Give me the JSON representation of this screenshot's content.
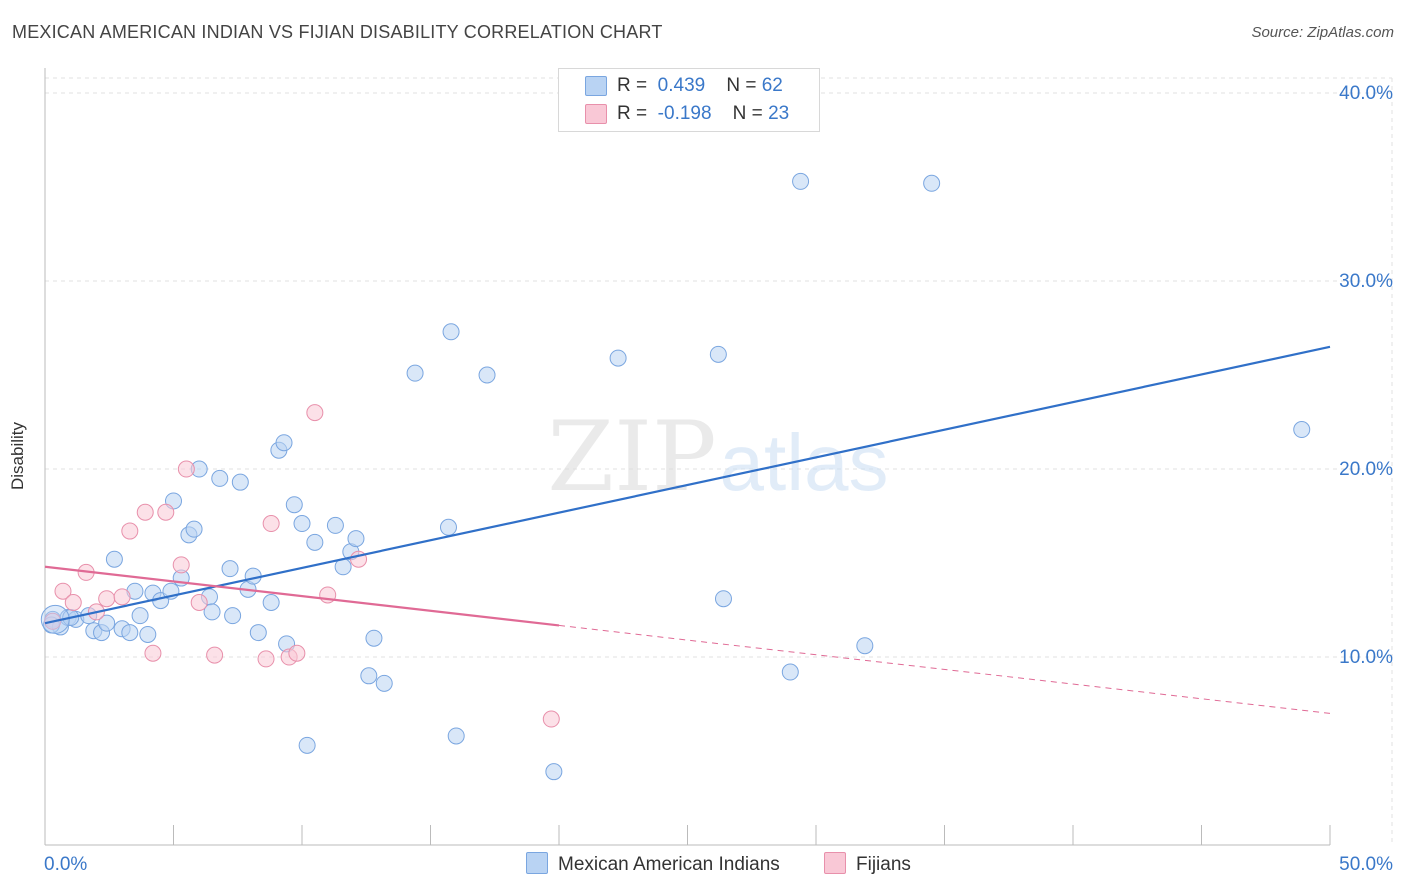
{
  "title": "MEXICAN AMERICAN INDIAN VS FIJIAN DISABILITY CORRELATION CHART",
  "source": "Source: ZipAtlas.com",
  "watermark": {
    "zip": "ZIP",
    "atlas": "atlas"
  },
  "legend": {
    "rows": [
      {
        "r_label": "R =",
        "r_value": "0.439",
        "n_label": "N =",
        "n_value": "62",
        "color": "#b9d3f3",
        "border": "#7aa6e0"
      },
      {
        "r_label": "R =",
        "r_value": "-0.198",
        "n_label": "N =",
        "n_value": "23",
        "color": "#f9c8d6",
        "border": "#e890ab"
      }
    ]
  },
  "bottom_legend": [
    {
      "label": "Mexican American Indians",
      "color": "#b9d3f3",
      "border": "#7aa6e0"
    },
    {
      "label": "Fijians",
      "color": "#f9c8d6",
      "border": "#e890ab"
    }
  ],
  "chart_data": {
    "type": "scatter",
    "title": "MEXICAN AMERICAN INDIAN VS FIJIAN DISABILITY CORRELATION CHART",
    "xlabel": "",
    "ylabel": "Disability",
    "xlim": [
      0,
      50
    ],
    "ylim": [
      0,
      40.8
    ],
    "x_tick_labels": [
      {
        "value": 0,
        "label": "0.0%"
      },
      {
        "value": 50,
        "label": "50.0%"
      }
    ],
    "y_tick_labels": [
      {
        "value": 10,
        "label": "10.0%"
      },
      {
        "value": 20,
        "label": "20.0%"
      },
      {
        "value": 30,
        "label": "30.0%"
      },
      {
        "value": 40,
        "label": "40.0%"
      }
    ],
    "series": [
      {
        "name": "Mexican American Indians",
        "color": "#b9d3f3",
        "stroke": "#7aa6e0",
        "trend": {
          "x0": 0,
          "y0": 11.8,
          "x1": 50,
          "y1": 26.5,
          "color": "#3070c8",
          "dashed_from": null
        },
        "points": [
          [
            0.3,
            12.0
          ],
          [
            0.6,
            11.6
          ],
          [
            0.9,
            12.1
          ],
          [
            1.2,
            12.0
          ],
          [
            1.7,
            12.2
          ],
          [
            1.9,
            11.4
          ],
          [
            2.2,
            11.3
          ],
          [
            2.4,
            11.8
          ],
          [
            2.7,
            15.2
          ],
          [
            3.0,
            11.5
          ],
          [
            3.3,
            11.3
          ],
          [
            3.5,
            13.5
          ],
          [
            3.7,
            12.2
          ],
          [
            4.0,
            11.2
          ],
          [
            4.2,
            13.4
          ],
          [
            4.5,
            13.0
          ],
          [
            4.9,
            13.5
          ],
          [
            5.0,
            18.3
          ],
          [
            5.3,
            14.2
          ],
          [
            5.6,
            16.5
          ],
          [
            5.8,
            16.8
          ],
          [
            6.0,
            20.0
          ],
          [
            6.4,
            13.2
          ],
          [
            6.5,
            12.4
          ],
          [
            6.8,
            19.5
          ],
          [
            7.2,
            14.7
          ],
          [
            7.3,
            12.2
          ],
          [
            7.6,
            19.3
          ],
          [
            7.9,
            13.6
          ],
          [
            8.1,
            14.3
          ],
          [
            8.3,
            11.3
          ],
          [
            8.8,
            12.9
          ],
          [
            9.1,
            21.0
          ],
          [
            9.3,
            21.4
          ],
          [
            9.4,
            10.7
          ],
          [
            9.7,
            18.1
          ],
          [
            10.0,
            17.1
          ],
          [
            10.2,
            5.3
          ],
          [
            10.5,
            16.1
          ],
          [
            11.3,
            17.0
          ],
          [
            11.6,
            14.8
          ],
          [
            11.9,
            15.6
          ],
          [
            12.1,
            16.3
          ],
          [
            12.6,
            9.0
          ],
          [
            12.8,
            11.0
          ],
          [
            13.2,
            8.6
          ],
          [
            14.4,
            25.1
          ],
          [
            15.7,
            16.9
          ],
          [
            15.8,
            27.3
          ],
          [
            16.0,
            5.8
          ],
          [
            17.2,
            25.0
          ],
          [
            19.8,
            3.9
          ],
          [
            22.3,
            25.9
          ],
          [
            26.2,
            26.1
          ],
          [
            26.4,
            13.1
          ],
          [
            29.0,
            9.2
          ],
          [
            29.4,
            35.3
          ],
          [
            31.9,
            10.6
          ],
          [
            34.5,
            35.2
          ],
          [
            48.9,
            22.1
          ],
          [
            0.25,
            11.7
          ],
          [
            1.0,
            12.1
          ]
        ]
      },
      {
        "name": "Fijians",
        "color": "#f9c8d6",
        "stroke": "#e890ab",
        "trend": {
          "x0": 0,
          "y0": 14.8,
          "x1": 50,
          "y1": 7.0,
          "color": "#e06a95",
          "dashed_from": 20
        },
        "points": [
          [
            0.3,
            11.9
          ],
          [
            0.7,
            13.5
          ],
          [
            1.1,
            12.9
          ],
          [
            1.6,
            14.5
          ],
          [
            2.0,
            12.4
          ],
          [
            2.4,
            13.1
          ],
          [
            3.0,
            13.2
          ],
          [
            3.3,
            16.7
          ],
          [
            3.9,
            17.7
          ],
          [
            4.2,
            10.2
          ],
          [
            4.7,
            17.7
          ],
          [
            5.3,
            14.9
          ],
          [
            5.5,
            20.0
          ],
          [
            6.0,
            12.9
          ],
          [
            6.6,
            10.1
          ],
          [
            8.6,
            9.9
          ],
          [
            8.8,
            17.1
          ],
          [
            9.5,
            10.0
          ],
          [
            9.8,
            10.2
          ],
          [
            10.5,
            23.0
          ],
          [
            11.0,
            13.3
          ],
          [
            12.2,
            15.2
          ],
          [
            19.7,
            6.7
          ]
        ]
      }
    ]
  }
}
